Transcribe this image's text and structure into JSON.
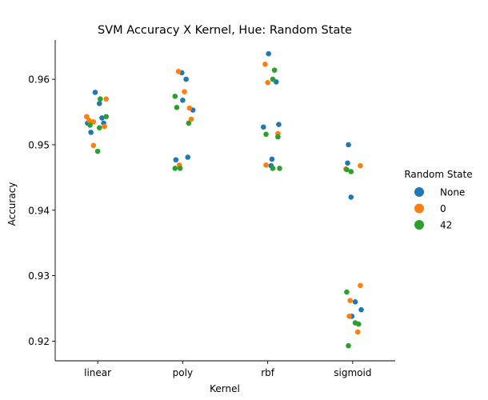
{
  "chart_data": {
    "type": "scatter",
    "title": "SVM Accuracy X Kernel, Hue: Random State",
    "xlabel": "Kernel",
    "ylabel": "Accuracy",
    "categories": [
      "linear",
      "poly",
      "rbf",
      "sigmoid"
    ],
    "ylim": [
      0.917,
      0.966
    ],
    "yticks": [
      0.92,
      0.93,
      0.94,
      0.95,
      0.96
    ],
    "ytick_labels": [
      "0.92",
      "0.93",
      "0.94",
      "0.95",
      "0.96"
    ],
    "legend": {
      "title": "Random State",
      "placement": "right"
    },
    "series": [
      {
        "name": "None",
        "color": "#1f77b4",
        "points": [
          {
            "x": "linear",
            "jitter": -0.03,
            "y": 0.958
          },
          {
            "x": "linear",
            "jitter": 0.02,
            "y": 0.9563
          },
          {
            "x": "linear",
            "jitter": 0.05,
            "y": 0.9541
          },
          {
            "x": "linear",
            "jitter": 0.07,
            "y": 0.9533
          },
          {
            "x": "linear",
            "jitter": -0.12,
            "y": 0.9533
          },
          {
            "x": "linear",
            "jitter": -0.08,
            "y": 0.9519
          },
          {
            "x": "poly",
            "jitter": -0.01,
            "y": 0.961
          },
          {
            "x": "poly",
            "jitter": 0.04,
            "y": 0.96
          },
          {
            "x": "poly",
            "jitter": 0.12,
            "y": 0.9553
          },
          {
            "x": "poly",
            "jitter": 0.0,
            "y": 0.9568
          },
          {
            "x": "poly",
            "jitter": 0.06,
            "y": 0.9481
          },
          {
            "x": "poly",
            "jitter": -0.08,
            "y": 0.9477
          },
          {
            "x": "rbf",
            "jitter": 0.01,
            "y": 0.9639
          },
          {
            "x": "rbf",
            "jitter": 0.1,
            "y": 0.9596
          },
          {
            "x": "rbf",
            "jitter": 0.13,
            "y": 0.9531
          },
          {
            "x": "rbf",
            "jitter": -0.05,
            "y": 0.9527
          },
          {
            "x": "rbf",
            "jitter": 0.05,
            "y": 0.9478
          },
          {
            "x": "rbf",
            "jitter": 0.04,
            "y": 0.9468
          },
          {
            "x": "sigmoid",
            "jitter": -0.05,
            "y": 0.95
          },
          {
            "x": "sigmoid",
            "jitter": -0.06,
            "y": 0.9472
          },
          {
            "x": "sigmoid",
            "jitter": -0.02,
            "y": 0.942
          },
          {
            "x": "sigmoid",
            "jitter": 0.03,
            "y": 0.926
          },
          {
            "x": "sigmoid",
            "jitter": 0.1,
            "y": 0.9248
          },
          {
            "x": "sigmoid",
            "jitter": -0.01,
            "y": 0.9238
          }
        ]
      },
      {
        "name": "0",
        "color": "#ff7f0e",
        "points": [
          {
            "x": "linear",
            "jitter": 0.1,
            "y": 0.957
          },
          {
            "x": "linear",
            "jitter": -0.13,
            "y": 0.9543
          },
          {
            "x": "linear",
            "jitter": -0.1,
            "y": 0.9537
          },
          {
            "x": "linear",
            "jitter": -0.05,
            "y": 0.9535
          },
          {
            "x": "linear",
            "jitter": 0.08,
            "y": 0.9528
          },
          {
            "x": "linear",
            "jitter": -0.05,
            "y": 0.9499
          },
          {
            "x": "poly",
            "jitter": -0.05,
            "y": 0.9612
          },
          {
            "x": "poly",
            "jitter": 0.02,
            "y": 0.9581
          },
          {
            "x": "poly",
            "jitter": 0.08,
            "y": 0.9556
          },
          {
            "x": "poly",
            "jitter": 0.1,
            "y": 0.9539
          },
          {
            "x": "poly",
            "jitter": -0.04,
            "y": 0.9469
          },
          {
            "x": "rbf",
            "jitter": -0.03,
            "y": 0.9623
          },
          {
            "x": "rbf",
            "jitter": 0.0,
            "y": 0.9595
          },
          {
            "x": "rbf",
            "jitter": 0.12,
            "y": 0.9517
          },
          {
            "x": "rbf",
            "jitter": -0.02,
            "y": 0.9469
          },
          {
            "x": "sigmoid",
            "jitter": 0.09,
            "y": 0.9468
          },
          {
            "x": "sigmoid",
            "jitter": -0.08,
            "y": 0.9463
          },
          {
            "x": "sigmoid",
            "jitter": 0.09,
            "y": 0.9285
          },
          {
            "x": "sigmoid",
            "jitter": -0.03,
            "y": 0.9262
          },
          {
            "x": "sigmoid",
            "jitter": -0.04,
            "y": 0.9238
          },
          {
            "x": "sigmoid",
            "jitter": 0.06,
            "y": 0.9214
          }
        ]
      },
      {
        "name": "42",
        "color": "#2ca02c",
        "points": [
          {
            "x": "linear",
            "jitter": 0.03,
            "y": 0.957
          },
          {
            "x": "linear",
            "jitter": 0.1,
            "y": 0.9543
          },
          {
            "x": "linear",
            "jitter": -0.09,
            "y": 0.953
          },
          {
            "x": "linear",
            "jitter": 0.02,
            "y": 0.9526
          },
          {
            "x": "linear",
            "jitter": 0.0,
            "y": 0.949
          },
          {
            "x": "poly",
            "jitter": -0.09,
            "y": 0.9574
          },
          {
            "x": "poly",
            "jitter": -0.07,
            "y": 0.9557
          },
          {
            "x": "poly",
            "jitter": 0.07,
            "y": 0.9533
          },
          {
            "x": "poly",
            "jitter": -0.09,
            "y": 0.9464
          },
          {
            "x": "poly",
            "jitter": -0.03,
            "y": 0.9464
          },
          {
            "x": "rbf",
            "jitter": 0.08,
            "y": 0.9614
          },
          {
            "x": "rbf",
            "jitter": 0.06,
            "y": 0.96
          },
          {
            "x": "rbf",
            "jitter": -0.02,
            "y": 0.9516
          },
          {
            "x": "rbf",
            "jitter": 0.12,
            "y": 0.9512
          },
          {
            "x": "rbf",
            "jitter": 0.06,
            "y": 0.9464
          },
          {
            "x": "rbf",
            "jitter": 0.14,
            "y": 0.9464
          },
          {
            "x": "sigmoid",
            "jitter": -0.07,
            "y": 0.9462
          },
          {
            "x": "sigmoid",
            "jitter": -0.02,
            "y": 0.9459
          },
          {
            "x": "sigmoid",
            "jitter": -0.07,
            "y": 0.9275
          },
          {
            "x": "sigmoid",
            "jitter": 0.03,
            "y": 0.9228
          },
          {
            "x": "sigmoid",
            "jitter": 0.07,
            "y": 0.9226
          },
          {
            "x": "sigmoid",
            "jitter": -0.05,
            "y": 0.9193
          }
        ]
      }
    ]
  }
}
